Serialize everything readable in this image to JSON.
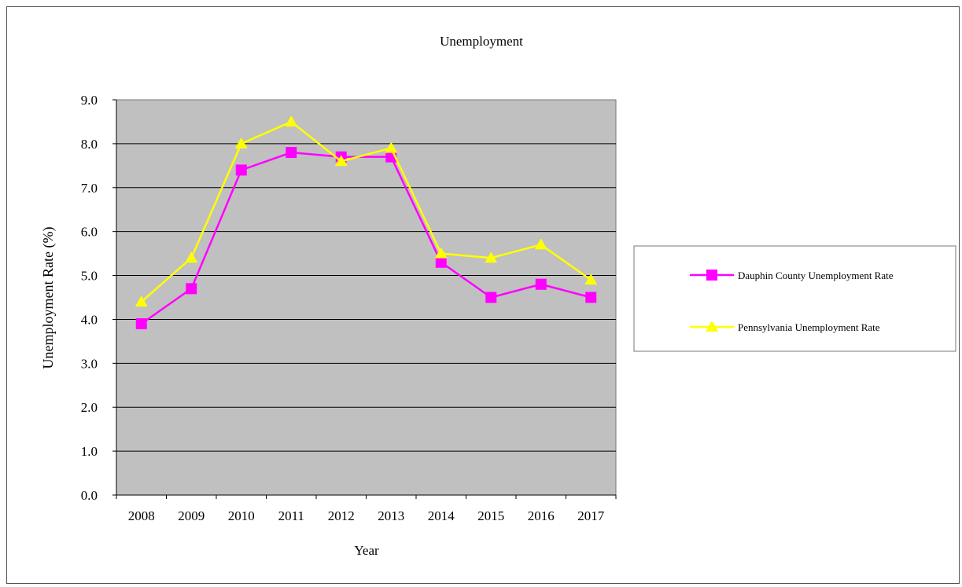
{
  "chart_data": {
    "type": "line",
    "title": "Unemployment",
    "xlabel": "Year",
    "ylabel": "Unemployment Rate (%)",
    "categories": [
      "2008",
      "2009",
      "2010",
      "2011",
      "2012",
      "2013",
      "2014",
      "2015",
      "2016",
      "2017"
    ],
    "ylim": [
      0,
      9
    ],
    "yticks": [
      "0.0",
      "1.0",
      "2.0",
      "3.0",
      "4.0",
      "5.0",
      "6.0",
      "7.0",
      "8.0",
      "9.0"
    ],
    "grid": true,
    "legend_position": "right",
    "plot_background": "#c0c0c0",
    "series": [
      {
        "name": "Dauphin County Unemployment Rate",
        "color": "#ff00ff",
        "marker": "square",
        "values": [
          3.9,
          4.7,
          7.4,
          7.8,
          7.7,
          7.7,
          5.3,
          4.5,
          4.8,
          4.5
        ]
      },
      {
        "name": "Pennsylvania Unemployment Rate",
        "color": "#ffff00",
        "marker": "triangle",
        "values": [
          4.4,
          5.4,
          8.0,
          8.5,
          7.6,
          7.9,
          5.5,
          5.4,
          5.7,
          4.9
        ]
      }
    ]
  }
}
